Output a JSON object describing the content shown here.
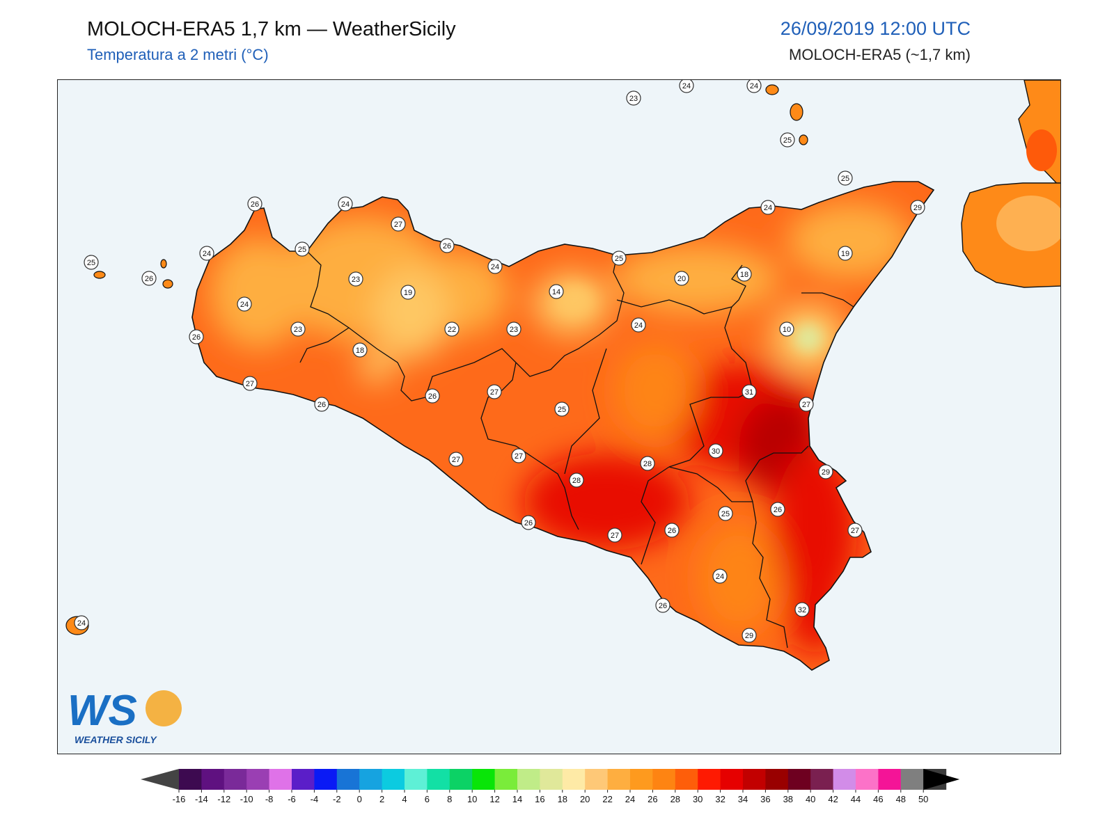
{
  "header": {
    "title": "MOLOCH-ERA5 1,7 km — WeatherSicily",
    "subtitle": "Temperatura a 2 metri (°C)",
    "datetime": "26/09/2019 12:00 UTC",
    "model": "MOLOCH-ERA5 (~1,7 km)"
  },
  "logo": {
    "letters": "WS",
    "text": "WEATHER SICILY"
  },
  "colors": {
    "sea": "#eef5f9",
    "land_base": "#fe6a1a",
    "warm": "#d90000",
    "cool": "#fec764",
    "coolest": "#e0e89a"
  },
  "station_labels": [
    "26",
    "24",
    "27",
    "25",
    "24",
    "25",
    "26",
    "26",
    "24",
    "23",
    "23",
    "19",
    "22",
    "14",
    "23",
    "18",
    "26",
    "27",
    "26",
    "26",
    "27",
    "27",
    "27",
    "28",
    "25",
    "26",
    "27",
    "24",
    "25",
    "20",
    "18",
    "24",
    "10",
    "19",
    "29",
    "25",
    "24",
    "23",
    "24",
    "24",
    "25",
    "31",
    "27",
    "30",
    "28",
    "29",
    "26",
    "25",
    "26",
    "27",
    "26",
    "24",
    "32",
    "29",
    "24"
  ],
  "colorbar": {
    "ticks": [
      "-16",
      "-14",
      "-12",
      "-10",
      "-8",
      "-6",
      "-4",
      "-2",
      "0",
      "2",
      "4",
      "6",
      "8",
      "10",
      "12",
      "14",
      "16",
      "18",
      "20",
      "22",
      "24",
      "26",
      "28",
      "30",
      "32",
      "34",
      "36",
      "38",
      "40",
      "42",
      "44",
      "46",
      "48",
      "50"
    ],
    "colors": [
      "#3d0a50",
      "#5f1180",
      "#7a2a99",
      "#9a3fb3",
      "#df72e8",
      "#5b1ec8",
      "#0a1af5",
      "#1874d6",
      "#16a3e0",
      "#0ccbe0",
      "#5ef0d6",
      "#12e0a5",
      "#0cd265",
      "#09e508",
      "#7aec3a",
      "#c0ec88",
      "#e0e89a",
      "#feeaa6",
      "#fec877",
      "#feae40",
      "#fe9a1e",
      "#fe8412",
      "#fe5e0a",
      "#fe1a02",
      "#e60000",
      "#c20000",
      "#990000",
      "#6e0020",
      "#7a2050",
      "#d28ce8",
      "#fc72c8",
      "#f41497",
      "#7f7f7f",
      "#3c3c3c"
    ]
  }
}
